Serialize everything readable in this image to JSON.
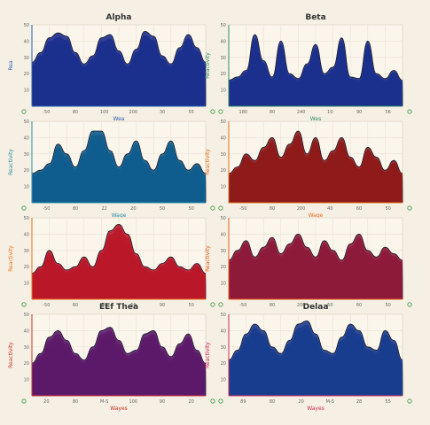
{
  "chart_data": [
    {
      "type": "area",
      "title": "Alpha",
      "xlabel": "Wea",
      "ylabel": "Rea",
      "ylim": [
        0,
        50
      ],
      "xtick_labels": [
        "-50",
        "80",
        "100",
        "200",
        "30",
        "55"
      ],
      "ytick_labels": [
        "10",
        "20",
        "30",
        "40",
        "50"
      ],
      "colors": [
        "#1b2d8c",
        "#2b5fb8",
        "#2f9fc4",
        "#5bc7c6",
        "#9fe0d6"
      ],
      "x": [
        0,
        5,
        10,
        15,
        20,
        25,
        30,
        35,
        40,
        45,
        50,
        55,
        60,
        65,
        70,
        75,
        80,
        85,
        90,
        95,
        100
      ],
      "values": [
        27,
        33,
        42,
        45,
        43,
        33,
        26,
        31,
        42,
        44,
        34,
        26,
        35,
        46,
        43,
        31,
        26,
        36,
        44,
        36,
        27
      ],
      "layers": 14
    },
    {
      "type": "area",
      "title": "Beta",
      "xlabel": "Wes",
      "ylabel": "Reactivity",
      "ylim": [
        0,
        50
      ],
      "xtick_labels": [
        "180",
        "80",
        "240",
        "10",
        "90",
        "56"
      ],
      "ytick_labels": [
        "10",
        "20",
        "30",
        "40",
        "50"
      ],
      "colors": [
        "#1b2d8c",
        "#2f7fb8",
        "#3fb89a",
        "#7fcf6a",
        "#c8e49a"
      ],
      "x": [
        0,
        5,
        10,
        15,
        20,
        25,
        30,
        35,
        40,
        45,
        50,
        55,
        60,
        65,
        70,
        75,
        80,
        85,
        90,
        95,
        100
      ],
      "values": [
        16,
        18,
        22,
        44,
        28,
        18,
        40,
        20,
        17,
        26,
        38,
        20,
        24,
        42,
        18,
        17,
        40,
        20,
        17,
        22,
        16
      ],
      "layers": 14
    },
    {
      "type": "area",
      "title": "",
      "xlabel": "Wage",
      "ylabel": "Reactivity",
      "ylim": [
        0,
        50
      ],
      "xtick_labels": [
        "-50",
        "80",
        "22",
        "20",
        "50",
        "50"
      ],
      "ytick_labels": [
        "10",
        "20",
        "30",
        "40",
        "50"
      ],
      "colors": [
        "#0f5c8c",
        "#1a86c2",
        "#17b5c7",
        "#3fd0b8",
        "#86e6c4"
      ],
      "x": [
        0,
        5,
        10,
        15,
        20,
        25,
        30,
        35,
        40,
        45,
        50,
        55,
        60,
        65,
        70,
        75,
        80,
        85,
        90,
        95,
        100
      ],
      "values": [
        18,
        20,
        24,
        36,
        30,
        22,
        32,
        44,
        44,
        32,
        22,
        30,
        38,
        26,
        20,
        30,
        38,
        26,
        20,
        24,
        18
      ],
      "layers": 14
    },
    {
      "type": "area",
      "title": "",
      "xlabel": "Wage",
      "ylabel": "Reactivity",
      "ylim": [
        0,
        50
      ],
      "xtick_labels": [
        "-50",
        "80",
        "200",
        "40",
        "60",
        "50"
      ],
      "ytick_labels": [
        "10",
        "20",
        "30",
        "40",
        "50"
      ],
      "colors": [
        "#8c1a1a",
        "#c72e1a",
        "#e8581c",
        "#f58e22",
        "#fbc64a"
      ],
      "x": [
        0,
        5,
        10,
        15,
        20,
        25,
        30,
        35,
        40,
        45,
        50,
        55,
        60,
        65,
        70,
        75,
        80,
        85,
        90,
        95,
        100
      ],
      "values": [
        18,
        22,
        30,
        26,
        34,
        40,
        28,
        36,
        44,
        30,
        40,
        26,
        32,
        40,
        28,
        22,
        34,
        28,
        20,
        26,
        18
      ],
      "layers": 14
    },
    {
      "type": "area",
      "title": "",
      "xlabel": "",
      "ylabel": "Reactivity",
      "ylim": [
        0,
        50
      ],
      "xtick_labels": [
        "-50",
        "60",
        "50",
        "60",
        "90",
        "50"
      ],
      "ytick_labels": [
        "10",
        "20",
        "30",
        "40",
        "50"
      ],
      "colors": [
        "#b8172a",
        "#e8461c",
        "#f57a1c",
        "#f8a524",
        "#fcd34a"
      ],
      "x": [
        0,
        5,
        10,
        15,
        20,
        25,
        30,
        35,
        40,
        45,
        50,
        55,
        60,
        65,
        70,
        75,
        80,
        85,
        90,
        95,
        100
      ],
      "values": [
        16,
        20,
        30,
        22,
        18,
        20,
        26,
        20,
        30,
        42,
        46,
        40,
        28,
        20,
        18,
        22,
        26,
        20,
        18,
        22,
        16
      ],
      "layers": 14
    },
    {
      "type": "area",
      "title": "",
      "xlabel": "",
      "ylabel": "Reactivity",
      "ylim": [
        0,
        50
      ],
      "xtick_labels": [
        "-50",
        "80",
        "200",
        "60",
        "60",
        "50"
      ],
      "ytick_labels": [
        "10",
        "20",
        "30",
        "40",
        "50"
      ],
      "colors": [
        "#8c1a3a",
        "#c72e2a",
        "#e8581c",
        "#f58e22",
        "#fbc64a"
      ],
      "x": [
        0,
        5,
        10,
        15,
        20,
        25,
        30,
        35,
        40,
        45,
        50,
        55,
        60,
        65,
        70,
        75,
        80,
        85,
        90,
        95,
        100
      ],
      "values": [
        24,
        30,
        36,
        26,
        32,
        38,
        28,
        34,
        40,
        32,
        26,
        36,
        30,
        24,
        34,
        40,
        30,
        26,
        32,
        28,
        24
      ],
      "layers": 14
    },
    {
      "type": "area",
      "title": "EEf Thea",
      "xlabel": "Wayes",
      "ylabel": "Reactivity",
      "ylim": [
        0,
        50
      ],
      "xtick_labels": [
        "20",
        "80",
        "M-S",
        "100",
        "90",
        "20"
      ],
      "ytick_labels": [
        "10",
        "20",
        "30",
        "40",
        "50"
      ],
      "colors": [
        "#5a1a6a",
        "#b8234a",
        "#e8501c",
        "#f58e22",
        "#fbc84a"
      ],
      "x": [
        0,
        5,
        10,
        15,
        20,
        25,
        30,
        35,
        40,
        45,
        50,
        55,
        60,
        65,
        70,
        75,
        80,
        85,
        90,
        95,
        100
      ],
      "values": [
        20,
        26,
        36,
        40,
        34,
        26,
        22,
        30,
        40,
        42,
        34,
        26,
        28,
        38,
        40,
        30,
        24,
        32,
        38,
        28,
        20
      ],
      "layers": 14
    },
    {
      "type": "area",
      "title": "Delaa",
      "xlabel": "Wayes",
      "ylabel": "Reactivity",
      "ylim": [
        0,
        50
      ],
      "xtick_labels": [
        "89",
        "80",
        "20",
        "M-S",
        "28",
        "55"
      ],
      "ytick_labels": [
        "10",
        "20",
        "30",
        "40",
        "50"
      ],
      "colors": [
        "#1a3a8c",
        "#1aa0c7",
        "#c72e5a",
        "#e8375a",
        "#f2789a"
      ],
      "x": [
        0,
        5,
        10,
        15,
        20,
        25,
        30,
        35,
        40,
        45,
        50,
        55,
        60,
        65,
        70,
        75,
        80,
        85,
        90,
        95,
        100
      ],
      "values": [
        22,
        28,
        38,
        44,
        40,
        30,
        26,
        34,
        44,
        46,
        38,
        28,
        26,
        36,
        44,
        40,
        30,
        28,
        40,
        34,
        22
      ],
      "layers": 14
    }
  ]
}
